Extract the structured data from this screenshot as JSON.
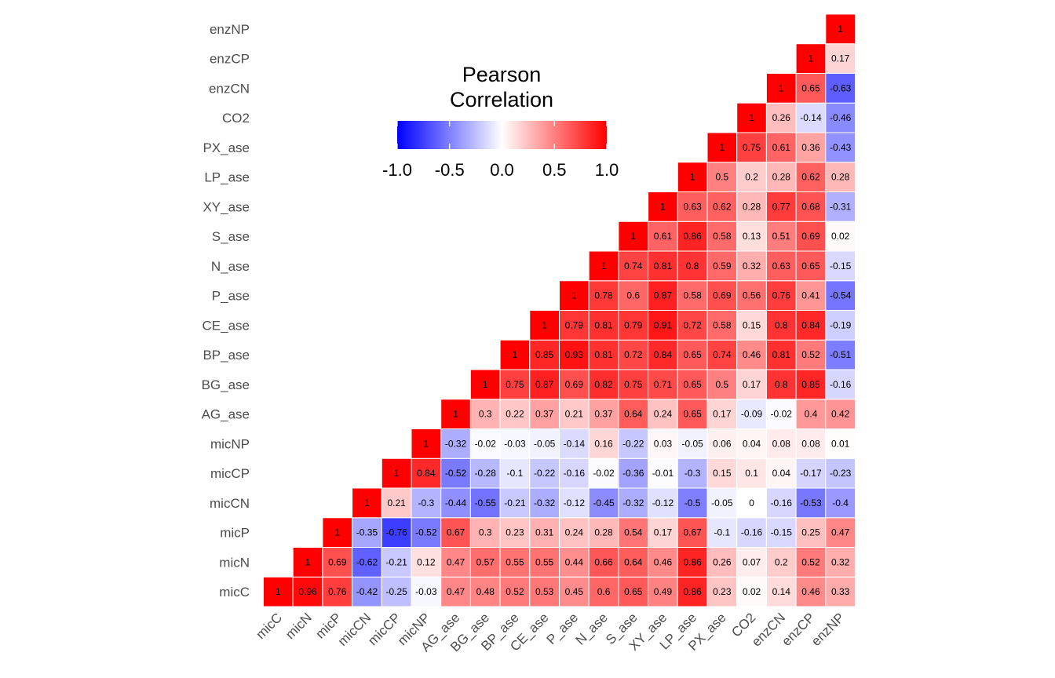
{
  "chart_data": {
    "type": "heatmap",
    "variables": [
      "micC",
      "micN",
      "micP",
      "micCN",
      "micCP",
      "micNP",
      "AG_ase",
      "BG_ase",
      "BP_ase",
      "CE_ase",
      "P_ase",
      "N_ase",
      "S_ase",
      "XY_ase",
      "LP_ase",
      "PX_ase",
      "CO2",
      "enzCN",
      "enzCP",
      "enzNP"
    ],
    "legend": {
      "title_lines": [
        "Pearson",
        "Correlation"
      ],
      "ticks": [
        "-1.0",
        "-0.5",
        "0.0",
        "0.5",
        "1.0"
      ],
      "tick_values": [
        -1.0,
        -0.5,
        0.0,
        0.5,
        1.0
      ],
      "range": [
        -1,
        1
      ]
    },
    "colors": {
      "low": "#0000FF",
      "mid": "#FFFFFF",
      "high": "#FF0000",
      "grid": "#FFFFFF"
    },
    "labels": [
      [
        "1",
        "0.96",
        "0.76",
        "-0.42",
        "-0.25",
        "-0.03",
        "0.47",
        "0.48",
        "0.52",
        "0.53",
        "0.45",
        "0.6",
        "0.65",
        "0.49",
        "0.86",
        "0.23",
        "0.02",
        "0.14",
        "0.46",
        "0.33"
      ],
      [
        "",
        "1",
        "0.69",
        "-0.62",
        "-0.21",
        "0.12",
        "0.47",
        "0.57",
        "0.55",
        "0.55",
        "0.44",
        "0.66",
        "0.64",
        "0.46",
        "0.86",
        "0.26",
        "0.07",
        "0.2",
        "0.52",
        "0.32"
      ],
      [
        "",
        "",
        "1",
        "-0.35",
        "-0.76",
        "-0.52",
        "0.67",
        "0.3",
        "0.23",
        "0.31",
        "0.24",
        "0.28",
        "0.54",
        "0.17",
        "0.67",
        "-0.1",
        "-0.16",
        "-0.15",
        "0.25",
        "0.47"
      ],
      [
        "",
        "",
        "",
        "1",
        "0.21",
        "-0.3",
        "-0.44",
        "-0.55",
        "-0.21",
        "-0.32",
        "-0.12",
        "-0.45",
        "-0.32",
        "-0.12",
        "-0.5",
        "-0.05",
        "0",
        "-0.16",
        "-0.53",
        "-0.4"
      ],
      [
        "",
        "",
        "",
        "",
        "1",
        "0.84",
        "-0.52",
        "-0.28",
        "-0.1",
        "-0.22",
        "-0.16",
        "-0.02",
        "-0.36",
        "-0.01",
        "-0.3",
        "0.15",
        "0.1",
        "0.04",
        "-0.17",
        "-0.23"
      ],
      [
        "",
        "",
        "",
        "",
        "",
        "1",
        "-0.32",
        "-0.02",
        "-0.03",
        "-0.05",
        "-0.14",
        "0.16",
        "-0.22",
        "0.03",
        "-0.05",
        "0.06",
        "0.04",
        "0.08",
        "0.08",
        "0.01"
      ],
      [
        "",
        "",
        "",
        "",
        "",
        "",
        "1",
        "0.3",
        "0.22",
        "0.37",
        "0.21",
        "0.37",
        "0.64",
        "0.24",
        "0.65",
        "0.17",
        "-0.09",
        "-0.02",
        "0.4",
        "0.42"
      ],
      [
        "",
        "",
        "",
        "",
        "",
        "",
        "",
        "1",
        "0.75",
        "0.87",
        "0.69",
        "0.82",
        "0.75",
        "0.71",
        "0.65",
        "0.5",
        "0.17",
        "0.8",
        "0.85",
        "-0.16"
      ],
      [
        "",
        "",
        "",
        "",
        "",
        "",
        "",
        "",
        "1",
        "0.85",
        "0.93",
        "0.81",
        "0.72",
        "0.84",
        "0.65",
        "0.74",
        "0.46",
        "0.81",
        "0.52",
        "-0.51"
      ],
      [
        "",
        "",
        "",
        "",
        "",
        "",
        "",
        "",
        "",
        "1",
        "0.79",
        "0.81",
        "0.79",
        "0.91",
        "0.72",
        "0.58",
        "0.15",
        "0.8",
        "0.84",
        "-0.19"
      ],
      [
        "",
        "",
        "",
        "",
        "",
        "",
        "",
        "",
        "",
        "",
        "1",
        "0.78",
        "0.6",
        "0.87",
        "0.58",
        "0.69",
        "0.56",
        "0.76",
        "0.41",
        "-0.54"
      ],
      [
        "",
        "",
        "",
        "",
        "",
        "",
        "",
        "",
        "",
        "",
        "",
        "1",
        "0.74",
        "0.81",
        "0.8",
        "0.59",
        "0.32",
        "0.63",
        "0.65",
        "-0.15"
      ],
      [
        "",
        "",
        "",
        "",
        "",
        "",
        "",
        "",
        "",
        "",
        "",
        "",
        "1",
        "0.61",
        "0.86",
        "0.58",
        "0.13",
        "0.51",
        "0.69",
        "0.02"
      ],
      [
        "",
        "",
        "",
        "",
        "",
        "",
        "",
        "",
        "",
        "",
        "",
        "",
        "",
        "1",
        "0.63",
        "0.62",
        "0.28",
        "0.77",
        "0.68",
        "-0.31"
      ],
      [
        "",
        "",
        "",
        "",
        "",
        "",
        "",
        "",
        "",
        "",
        "",
        "",
        "",
        "",
        "1",
        "0.5",
        "0.2",
        "0.28",
        "0.62",
        "0.28"
      ],
      [
        "",
        "",
        "",
        "",
        "",
        "",
        "",
        "",
        "",
        "",
        "",
        "",
        "",
        "",
        "",
        "1",
        "0.75",
        "0.61",
        "0.36",
        "-0.43"
      ],
      [
        "",
        "",
        "",
        "",
        "",
        "",
        "",
        "",
        "",
        "",
        "",
        "",
        "",
        "",
        "",
        "",
        "1",
        "0.26",
        "-0.14",
        "-0.46"
      ],
      [
        "",
        "",
        "",
        "",
        "",
        "",
        "",
        "",
        "",
        "",
        "",
        "",
        "",
        "",
        "",
        "",
        "",
        "1",
        "0.65",
        "-0.63"
      ],
      [
        "",
        "",
        "",
        "",
        "",
        "",
        "",
        "",
        "",
        "",
        "",
        "",
        "",
        "",
        "",
        "",
        "",
        "",
        "1",
        "0.17"
      ],
      [
        "",
        "",
        "",
        "",
        "",
        "",
        "",
        "",
        "",
        "",
        "",
        "",
        "",
        "",
        "",
        "",
        "",
        "",
        "",
        "1"
      ]
    ]
  }
}
